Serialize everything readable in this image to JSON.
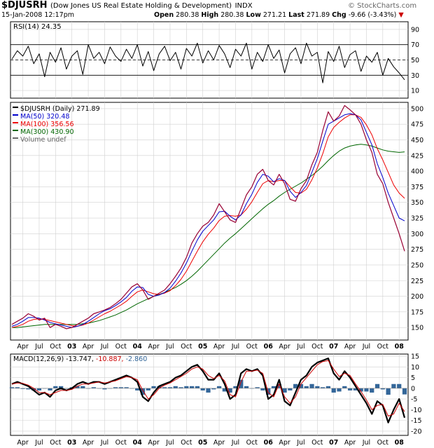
{
  "header": {
    "symbol": "$DJUSRH",
    "description": "(Dow Jones US Real Estate Holding & Development)",
    "exchange": "INDX",
    "datetime": "15-Jan-2008 12:17pm",
    "open_label": "Open",
    "open": "280.38",
    "high_label": "High",
    "high": "280.38",
    "low_label": "Low",
    "low": "271.21",
    "last_label": "Last",
    "last": "271.89",
    "chg_label": "Chg",
    "chg": "-9.66 (-3.43%)",
    "chg_arrow": "▼",
    "watermark": "© StockCharts.com"
  },
  "colors": {
    "price": "#000000",
    "price_down": "#990033",
    "ma50": "#0000cc",
    "ma100": "#ee0000",
    "ma300": "#006600",
    "rsi": "#000000",
    "macd": "#000000",
    "signal": "#cc0000",
    "histogram": "#336699",
    "grid": "#d0d0d0"
  },
  "chart_data": [
    {
      "type": "line",
      "title": "RSI(14) 24.35",
      "indicator": "RSI(14)",
      "current": 24.35,
      "ylim": [
        0,
        100
      ],
      "ticks": [
        "90",
        "70",
        "50",
        "30",
        "10"
      ],
      "tick_values": [
        90,
        70,
        50,
        30,
        10
      ],
      "reference_lines": [
        70,
        50,
        30
      ],
      "x": [
        0,
        1,
        2,
        3,
        4,
        5,
        6,
        7,
        8,
        9,
        10,
        11,
        12,
        13,
        14,
        15,
        16,
        17,
        18,
        19,
        20,
        21,
        22,
        23,
        24,
        25,
        26,
        27,
        28,
        29,
        30,
        31,
        32,
        33,
        34,
        35,
        36,
        37,
        38,
        39,
        40,
        41,
        42,
        43,
        44,
        45,
        46,
        47,
        48,
        49,
        50,
        51,
        52,
        53,
        54,
        55,
        56,
        57,
        58,
        59,
        60,
        61,
        62,
        63,
        64,
        65,
        66,
        67,
        68,
        69,
        70,
        71,
        72
      ],
      "values": [
        51,
        62,
        55,
        68,
        45,
        58,
        28,
        60,
        47,
        66,
        38,
        55,
        62,
        31,
        70,
        52,
        60,
        45,
        67,
        55,
        48,
        64,
        52,
        70,
        42,
        61,
        36,
        58,
        68,
        49,
        60,
        38,
        65,
        55,
        72,
        46,
        62,
        50,
        69,
        58,
        40,
        64,
        55,
        72,
        38,
        60,
        48,
        70,
        52,
        63,
        33,
        58,
        66,
        45,
        72,
        55,
        60,
        20,
        61,
        48,
        68,
        40,
        57,
        62,
        35,
        55,
        47,
        60,
        30,
        52,
        41,
        33,
        24
      ]
    },
    {
      "type": "line",
      "title": "$DJUSRH (Daily) 271.89",
      "legend": [
        "$DJUSRH (Daily) 271.89",
        "MA(50) 320.48",
        "MA(100) 356.56",
        "MA(300) 430.90",
        "Volume undef"
      ],
      "ylim": [
        130,
        510
      ],
      "ticks": [
        "500",
        "475",
        "450",
        "425",
        "400",
        "375",
        "350",
        "325",
        "300",
        "275",
        "250",
        "225",
        "200",
        "175",
        "150"
      ],
      "tick_values": [
        500,
        475,
        450,
        425,
        400,
        375,
        350,
        325,
        300,
        275,
        250,
        225,
        200,
        175,
        150
      ],
      "x_tick_labels": [
        "Apr",
        "Jul",
        "Oct",
        "03",
        "Apr",
        "Jul",
        "Oct",
        "04",
        "Apr",
        "Jul",
        "Oct",
        "05",
        "Apr",
        "Jul",
        "Oct",
        "06",
        "Apr",
        "Jul",
        "Oct",
        "07",
        "Apr",
        "Jul",
        "Oct",
        "08"
      ],
      "x_tick_months": [
        2,
        5,
        8,
        11,
        14,
        17,
        20,
        23,
        26,
        29,
        32,
        35,
        38,
        41,
        44,
        47,
        50,
        53,
        56,
        59,
        62,
        65,
        68,
        71
      ],
      "x": [
        0,
        1,
        2,
        3,
        4,
        5,
        6,
        7,
        8,
        9,
        10,
        11,
        12,
        13,
        14,
        15,
        16,
        17,
        18,
        19,
        20,
        21,
        22,
        23,
        24,
        25,
        26,
        27,
        28,
        29,
        30,
        31,
        32,
        33,
        34,
        35,
        36,
        37,
        38,
        39,
        40,
        41,
        42,
        43,
        44,
        45,
        46,
        47,
        48,
        49,
        50,
        51,
        52,
        53,
        54,
        55,
        56,
        57,
        58,
        59,
        60,
        61,
        62,
        63,
        64,
        65,
        66,
        67,
        68,
        69,
        70,
        71,
        72
      ],
      "series": [
        {
          "name": "$DJUSRH (Daily) 271.89",
          "values": [
            155,
            160,
            165,
            172,
            168,
            162,
            165,
            150,
            155,
            152,
            148,
            150,
            155,
            160,
            165,
            172,
            175,
            178,
            182,
            188,
            195,
            205,
            215,
            220,
            210,
            195,
            200,
            205,
            210,
            220,
            232,
            245,
            262,
            285,
            300,
            312,
            318,
            330,
            348,
            335,
            322,
            318,
            340,
            362,
            375,
            395,
            403,
            385,
            378,
            395,
            380,
            355,
            352,
            372,
            385,
            410,
            430,
            465,
            495,
            480,
            488,
            505,
            498,
            490,
            475,
            450,
            430,
            395,
            380,
            350,
            325,
            300,
            272
          ]
        },
        {
          "name": "MA(50) 320.48",
          "values": [
            152,
            155,
            160,
            166,
            166,
            165,
            162,
            158,
            156,
            154,
            152,
            150,
            152,
            155,
            160,
            166,
            172,
            177,
            180,
            185,
            191,
            198,
            208,
            215,
            214,
            203,
            200,
            202,
            206,
            213,
            224,
            237,
            253,
            272,
            290,
            304,
            313,
            322,
            335,
            336,
            328,
            322,
            330,
            348,
            363,
            382,
            395,
            392,
            383,
            388,
            385,
            368,
            358,
            366,
            377,
            398,
            420,
            448,
            475,
            480,
            485,
            490,
            492,
            490,
            482,
            462,
            442,
            412,
            390,
            365,
            345,
            325,
            320.48
          ]
        },
        {
          "name": "MA(100) 356.56",
          "values": [
            150,
            152,
            155,
            160,
            163,
            164,
            163,
            161,
            159,
            157,
            155,
            153,
            152,
            154,
            157,
            162,
            167,
            172,
            176,
            181,
            186,
            192,
            200,
            207,
            210,
            207,
            204,
            203,
            205,
            209,
            217,
            227,
            240,
            256,
            272,
            287,
            299,
            309,
            321,
            328,
            329,
            328,
            330,
            339,
            351,
            366,
            380,
            385,
            383,
            385,
            385,
            375,
            366,
            365,
            371,
            386,
            405,
            428,
            455,
            470,
            478,
            485,
            490,
            490,
            486,
            474,
            458,
            436,
            418,
            398,
            378,
            365,
            356.56
          ]
        },
        {
          "name": "MA(300) 430.90",
          "values": [
            150,
            150,
            151,
            152,
            153,
            154,
            155,
            155,
            155,
            155,
            155,
            155,
            155,
            156,
            157,
            159,
            161,
            164,
            167,
            170,
            174,
            178,
            183,
            188,
            192,
            196,
            200,
            203,
            206,
            210,
            214,
            219,
            225,
            232,
            240,
            249,
            258,
            267,
            276,
            285,
            293,
            300,
            308,
            316,
            324,
            332,
            340,
            347,
            353,
            360,
            366,
            371,
            376,
            381,
            387,
            393,
            400,
            408,
            417,
            425,
            432,
            437,
            440,
            442,
            443,
            442,
            440,
            437,
            434,
            432,
            431,
            430,
            430.9
          ]
        }
      ]
    },
    {
      "type": "line",
      "title": "MACD(12,26,9) -13.747, -10.887, -2.860",
      "indicator": "MACD(12,26,9)",
      "macd_value": "-13.747",
      "signal_value": "-10.887",
      "hist_value": "-2.860",
      "ylim": [
        -22,
        16
      ],
      "ticks": [
        "15",
        "10",
        "5",
        "0",
        "-5",
        "-10",
        "-15",
        "-20"
      ],
      "tick_values": [
        15,
        10,
        5,
        0,
        -5,
        -10,
        -15,
        -20
      ],
      "x": [
        0,
        1,
        2,
        3,
        4,
        5,
        6,
        7,
        8,
        9,
        10,
        11,
        12,
        13,
        14,
        15,
        16,
        17,
        18,
        19,
        20,
        21,
        22,
        23,
        24,
        25,
        26,
        27,
        28,
        29,
        30,
        31,
        32,
        33,
        34,
        35,
        36,
        37,
        38,
        39,
        40,
        41,
        42,
        43,
        44,
        45,
        46,
        47,
        48,
        49,
        50,
        51,
        52,
        53,
        54,
        55,
        56,
        57,
        58,
        59,
        60,
        61,
        62,
        63,
        64,
        65,
        66,
        67,
        68,
        69,
        70,
        71,
        72
      ],
      "series": [
        {
          "name": "MACD",
          "values": [
            2,
            3,
            2,
            1,
            -1,
            -3,
            -2,
            -4,
            -1,
            0,
            -1,
            0,
            2,
            3,
            2,
            3,
            3,
            2,
            3,
            4,
            5,
            6,
            5,
            3,
            -4,
            -6,
            -2,
            1,
            2,
            3,
            5,
            6,
            8,
            10,
            11,
            8,
            4,
            4,
            7,
            2,
            -5,
            -3,
            7,
            9,
            8,
            9,
            6,
            -5,
            -3,
            4,
            -6,
            -8,
            -2,
            4,
            6,
            10,
            12,
            13,
            14,
            7,
            4,
            8,
            5,
            1,
            -3,
            -7,
            -12,
            -6,
            -8,
            -16,
            -10,
            -5,
            -13.747
          ]
        },
        {
          "name": "Signal",
          "values": [
            2,
            2.5,
            2.3,
            1.5,
            0,
            -2,
            -2,
            -3,
            -2,
            -1,
            -1,
            -0.5,
            1,
            2,
            2,
            2.5,
            3,
            2.5,
            3,
            3.5,
            4.5,
            5.5,
            5,
            4,
            -1,
            -5,
            -3,
            0,
            1.5,
            2.5,
            4,
            5.5,
            7,
            9,
            10,
            9,
            6,
            4.5,
            6,
            3.5,
            -3,
            -4,
            3,
            8,
            8,
            8.5,
            7,
            -2,
            -4,
            2,
            -4,
            -7,
            -4,
            2,
            5,
            8,
            11,
            12.5,
            13,
            9,
            5.5,
            7,
            6,
            2,
            -1.5,
            -5.5,
            -10,
            -8,
            -7.5,
            -13,
            -12,
            -7,
            -10.887
          ]
        }
      ],
      "histogram": [
        0.5,
        0.5,
        -0.3,
        -0.5,
        -1,
        -1,
        0,
        -1,
        1,
        1,
        0,
        0.5,
        1,
        1,
        0,
        0.5,
        0,
        -0.5,
        0,
        0.5,
        0.5,
        0.5,
        0,
        -1,
        -3,
        -1,
        1,
        1,
        0.5,
        0.5,
        1,
        0.5,
        1,
        1,
        1,
        -1,
        -2,
        -0.5,
        1,
        -1.5,
        -2,
        1,
        4,
        1,
        0,
        0.5,
        -1,
        -3,
        1,
        2,
        -2,
        -1,
        2,
        2,
        1,
        2,
        1,
        0.5,
        1,
        -2,
        -1.5,
        1,
        -1,
        -1,
        -1.5,
        -1.5,
        -2,
        2,
        -0.5,
        -3,
        2,
        2,
        -2.86
      ]
    }
  ]
}
